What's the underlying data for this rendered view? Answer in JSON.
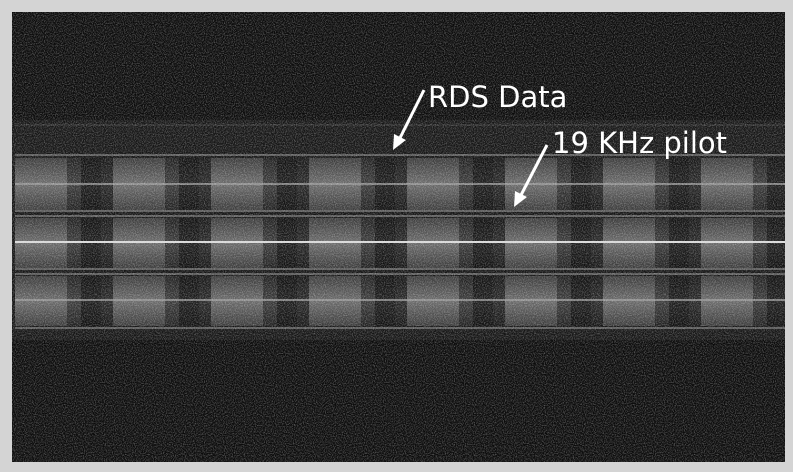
{
  "annotations": [
    {
      "text": "RDS Data"
    },
    {
      "text": "19 KHz pilot"
    }
  ]
}
